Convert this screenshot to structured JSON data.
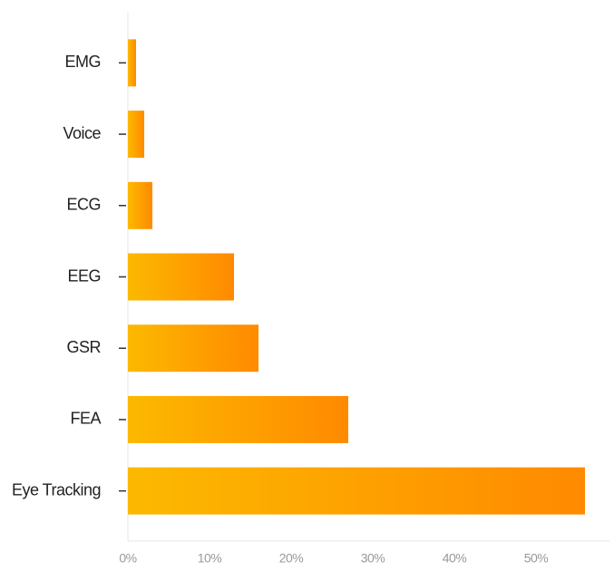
{
  "chart_data": {
    "type": "bar",
    "orientation": "horizontal",
    "categories": [
      "EMG",
      "Voice",
      "ECG",
      "EEG",
      "GSR",
      "FEA",
      "Eye Tracking"
    ],
    "values": [
      1,
      2,
      3,
      13,
      16,
      27,
      56
    ],
    "color": [
      "#fcb900",
      "#ff8a00"
    ],
    "xlim": [
      0,
      59
    ],
    "xticks": [
      {
        "value": 0,
        "label": "0%"
      },
      {
        "value": 10,
        "label": "10%"
      },
      {
        "value": 20,
        "label": "20%"
      },
      {
        "value": 30,
        "label": "30%"
      },
      {
        "value": 40,
        "label": "40%"
      },
      {
        "value": 50,
        "label": "50%"
      }
    ],
    "grid": false
  }
}
